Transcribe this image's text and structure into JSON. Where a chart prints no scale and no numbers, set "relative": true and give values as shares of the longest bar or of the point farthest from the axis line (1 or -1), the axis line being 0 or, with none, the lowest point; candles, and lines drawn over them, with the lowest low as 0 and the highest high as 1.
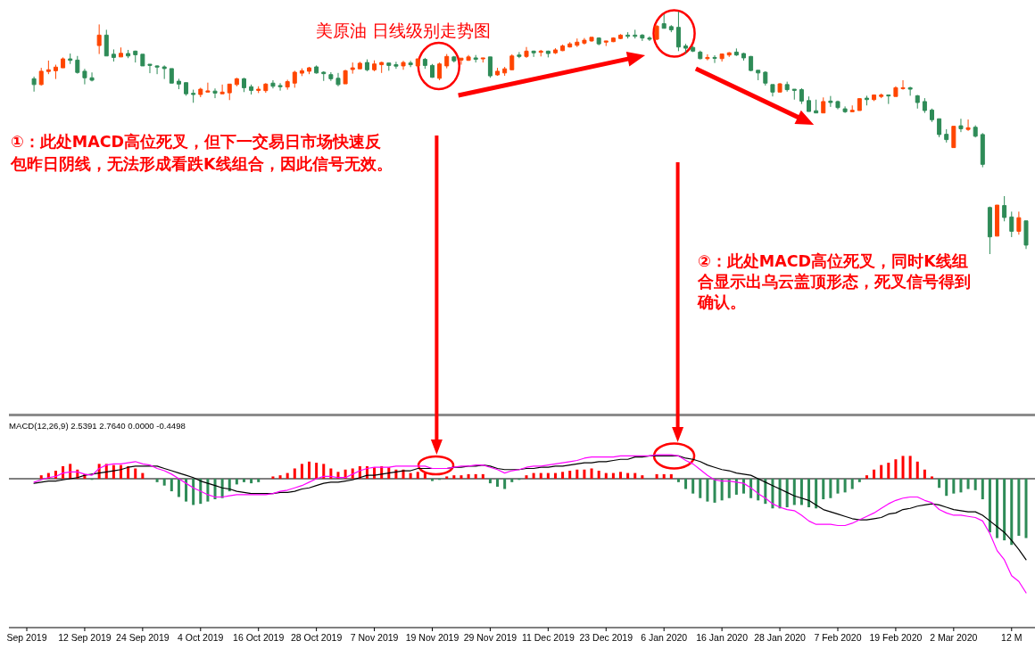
{
  "chart_data": [
    {
      "type": "candlestick",
      "title": "美原油 日线级别走势图",
      "relative": true,
      "tick_labels": false,
      "annotations": [
        "①：此处MACD高位死叉，但下一交易日市场快速反包昨日阴线，无法形成看跌K线组合，因此信号无效。",
        "②：此处MACD高位死叉，同时K线组合显示出乌云盖顶形态，死叉信号得到确认。"
      ],
      "categories": [
        null,
        null,
        null,
        null,
        null,
        null,
        null,
        null,
        null,
        null,
        null,
        null,
        null,
        null,
        null,
        null,
        null,
        null,
        null,
        null,
        null,
        null,
        null,
        null,
        null,
        null,
        null,
        null,
        null,
        null,
        null,
        null,
        null,
        null,
        null,
        null,
        null,
        null,
        null,
        null,
        null,
        null,
        null,
        null,
        null,
        null,
        null,
        null,
        null,
        null,
        null,
        null,
        null,
        null,
        null,
        null,
        null,
        null,
        null,
        null,
        null,
        null,
        null,
        null,
        null,
        null,
        null,
        null,
        null,
        null,
        null,
        null,
        null,
        null,
        null,
        null,
        null,
        null,
        null,
        null,
        null,
        null,
        null,
        null,
        null,
        null,
        null,
        null,
        null,
        null,
        null,
        null,
        null,
        null,
        null,
        null,
        null,
        null,
        null,
        null,
        null,
        null,
        null,
        null,
        null,
        null,
        null,
        null,
        null,
        null,
        null,
        null,
        null,
        null,
        null,
        null,
        null,
        null,
        null,
        null,
        null,
        null,
        null,
        null,
        null,
        null,
        null,
        null,
        null,
        null,
        null,
        null,
        null,
        null,
        null,
        null,
        null,
        null,
        null
      ],
      "ohlc": [
        null,
        [
          0.723,
          0.732,
          0.67,
          0.699
        ],
        [
          0.699,
          0.768,
          0.695,
          0.754
        ],
        [
          0.753,
          0.798,
          0.742,
          0.76
        ],
        [
          0.756,
          0.781,
          0.722,
          0.771
        ],
        [
          0.768,
          0.811,
          0.768,
          0.805
        ],
        [
          0.805,
          0.827,
          0.784,
          0.799
        ],
        [
          0.8,
          0.817,
          0.744,
          0.749
        ],
        [
          0.754,
          0.764,
          0.7,
          0.727
        ],
        [
          0.727,
          0.749,
          0.712,
          0.717
        ],
        [
          0.86,
          0.947,
          0.825,
          0.903
        ],
        [
          0.903,
          0.925,
          0.817,
          0.817
        ],
        [
          0.824,
          0.844,
          0.794,
          0.811
        ],
        [
          0.813,
          0.852,
          0.813,
          0.828
        ],
        [
          0.827,
          0.842,
          0.808,
          0.817
        ],
        [
          0.837,
          0.839,
          0.79,
          0.822
        ],
        [
          0.824,
          0.824,
          0.776,
          0.776
        ],
        [
          0.783,
          0.783,
          0.746,
          0.778
        ],
        [
          0.776,
          0.778,
          0.742,
          0.771
        ],
        [
          0.772,
          0.778,
          0.722,
          0.765
        ],
        [
          0.765,
          0.765,
          0.705,
          0.705
        ],
        [
          0.713,
          0.723,
          0.68,
          0.701
        ],
        [
          0.707,
          0.707,
          0.653,
          0.661
        ],
        [
          0.663,
          0.678,
          0.624,
          0.658
        ],
        [
          0.658,
          0.686,
          0.647,
          0.68
        ],
        [
          0.668,
          0.707,
          0.668,
          0.673
        ],
        [
          0.672,
          0.683,
          0.643,
          0.664
        ],
        [
          0.661,
          0.699,
          0.661,
          0.668
        ],
        [
          0.665,
          0.701,
          0.635,
          0.701
        ],
        [
          0.699,
          0.727,
          0.692,
          0.723
        ],
        [
          0.723,
          0.727,
          0.668,
          0.686
        ],
        [
          0.69,
          0.699,
          0.658,
          0.675
        ],
        [
          0.675,
          0.692,
          0.664,
          0.68
        ],
        [
          0.674,
          0.705,
          0.665,
          0.701
        ],
        [
          0.705,
          0.717,
          0.683,
          0.692
        ],
        [
          0.695,
          0.705,
          0.674,
          0.69
        ],
        [
          0.689,
          0.719,
          0.678,
          0.711
        ],
        [
          0.705,
          0.756,
          0.686,
          0.75
        ],
        [
          0.746,
          0.766,
          0.734,
          0.756
        ],
        [
          0.754,
          0.772,
          0.742,
          0.768
        ],
        [
          0.772,
          0.778,
          0.744,
          0.747
        ],
        [
          0.75,
          0.754,
          0.714,
          0.744
        ],
        [
          0.74,
          0.75,
          0.714,
          0.723
        ],
        [
          0.725,
          0.747,
          0.692,
          0.699
        ],
        [
          0.702,
          0.76,
          0.702,
          0.756
        ],
        [
          0.761,
          0.79,
          0.744,
          0.768
        ],
        [
          0.764,
          0.793,
          0.764,
          0.787
        ],
        [
          0.79,
          0.803,
          0.754,
          0.76
        ],
        [
          0.76,
          0.799,
          0.754,
          0.784
        ],
        [
          0.781,
          0.793,
          0.747,
          0.79
        ],
        [
          0.788,
          0.788,
          0.756,
          0.778
        ],
        [
          0.781,
          0.793,
          0.764,
          0.775
        ],
        [
          0.776,
          0.797,
          0.76,
          0.79
        ],
        [
          0.788,
          0.797,
          0.771,
          0.781
        ],
        [
          0.776,
          0.805,
          0.771,
          0.805
        ],
        [
          0.803,
          0.809,
          0.764,
          0.778
        ],
        [
          0.778,
          0.784,
          0.727,
          0.729
        ],
        [
          0.725,
          0.79,
          0.717,
          0.784
        ],
        [
          0.776,
          0.825,
          0.766,
          0.815
        ],
        [
          0.813,
          0.817,
          0.79,
          0.797
        ],
        [
          0.8,
          0.808,
          0.781,
          0.808
        ],
        [
          0.799,
          0.821,
          0.797,
          0.813
        ],
        [
          0.809,
          0.821,
          0.79,
          0.803
        ],
        [
          0.805,
          0.809,
          0.79,
          0.809
        ],
        [
          0.813,
          0.813,
          0.727,
          0.735
        ],
        [
          0.739,
          0.768,
          0.735,
          0.754
        ],
        [
          0.747,
          0.772,
          0.735,
          0.764
        ],
        [
          0.76,
          0.824,
          0.76,
          0.817
        ],
        [
          0.821,
          0.833,
          0.808,
          0.815
        ],
        [
          0.815,
          0.854,
          0.809,
          0.837
        ],
        [
          0.837,
          0.839,
          0.813,
          0.83
        ],
        [
          0.832,
          0.842,
          0.815,
          0.837
        ],
        [
          0.837,
          0.839,
          0.811,
          0.827
        ],
        [
          0.83,
          0.849,
          0.825,
          0.842
        ],
        [
          0.839,
          0.864,
          0.837,
          0.858
        ],
        [
          0.854,
          0.874,
          0.852,
          0.867
        ],
        [
          0.861,
          0.889,
          0.854,
          0.874
        ],
        [
          0.87,
          0.891,
          0.864,
          0.882
        ],
        [
          0.879,
          0.894,
          0.876,
          0.894
        ],
        [
          0.891,
          0.894,
          0.861,
          0.867
        ],
        [
          0.874,
          0.879,
          0.858,
          0.879
        ],
        [
          0.876,
          0.894,
          0.874,
          0.891
        ],
        [
          0.889,
          0.907,
          0.886,
          0.903
        ],
        [
          0.903,
          0.915,
          0.889,
          0.898
        ],
        [
          0.903,
          0.925,
          0.889,
          0.898
        ],
        [
          0.903,
          0.907,
          0.879,
          0.891
        ],
        [
          0.891,
          0.898,
          0.879,
          0.886
        ],
        [
          0.886,
          0.944,
          0.882,
          0.94
        ],
        [
          0.95,
          0.989,
          0.931,
          0.931
        ],
        [
          0.938,
          0.944,
          0.915,
          0.925
        ],
        [
          0.935,
          1,
          0.837,
          0.854
        ],
        [
          0.858,
          0.867,
          0.827,
          0.849
        ],
        [
          0.852,
          0.858,
          0.833,
          0.837
        ],
        [
          0.833,
          0.839,
          0.803,
          0.806
        ],
        [
          0.806,
          0.824,
          0.799,
          0.811
        ],
        [
          0.811,
          0.82,
          0.788,
          0.808
        ],
        [
          0.806,
          0.827,
          0.794,
          0.825
        ],
        [
          0.821,
          0.833,
          0.813,
          0.83
        ],
        [
          0.833,
          0.848,
          0.817,
          0.821
        ],
        [
          0.827,
          0.83,
          0.798,
          0.809
        ],
        [
          0.815,
          0.817,
          0.754,
          0.757
        ],
        [
          0.758,
          0.758,
          0.717,
          0.747
        ],
        [
          0.75,
          0.754,
          0.695,
          0.705
        ],
        [
          0.699,
          0.699,
          0.65,
          0.668
        ],
        [
          0.668,
          0.705,
          0.668,
          0.702
        ],
        [
          0.699,
          0.711,
          0.67,
          0.678
        ],
        [
          0.68,
          0.68,
          0.637,
          0.675
        ],
        [
          0.678,
          0.684,
          0.619,
          0.631
        ],
        [
          0.633,
          0.65,
          0.588,
          0.588
        ],
        [
          0.591,
          0.637,
          0.582,
          0.582
        ],
        [
          0.582,
          0.646,
          0.582,
          0.629
        ],
        [
          0.631,
          0.652,
          0.607,
          0.625
        ],
        [
          0.629,
          0.633,
          0.597,
          0.604
        ],
        [
          0.599,
          0.609,
          0.582,
          0.587
        ],
        [
          0.587,
          0.613,
          0.587,
          0.593
        ],
        [
          0.592,
          0.643,
          0.592,
          0.641
        ],
        [
          0.643,
          0.653,
          0.613,
          0.637
        ],
        [
          0.637,
          0.658,
          0.631,
          0.656
        ],
        [
          0.65,
          0.662,
          0.643,
          0.656
        ],
        [
          0.656,
          0.658,
          0.619,
          0.652
        ],
        [
          0.65,
          0.692,
          0.65,
          0.686
        ],
        [
          0.683,
          0.717,
          0.678,
          0.686
        ],
        [
          0.686,
          0.69,
          0.653,
          0.68
        ],
        [
          0.653,
          0.656,
          0.6,
          0.625
        ],
        [
          0.629,
          0.643,
          0.582,
          0.592
        ],
        [
          0.594,
          0.6,
          0.545,
          0.554
        ],
        [
          0.558,
          0.558,
          0.482,
          0.493
        ],
        [
          0.494,
          0.515,
          0.46,
          0.472
        ],
        [
          0.439,
          0.527,
          0.439,
          0.527
        ],
        [
          0.529,
          0.558,
          0.503,
          0.517
        ],
        [
          0.514,
          0.555,
          0.508,
          0.521
        ],
        [
          0.523,
          0.531,
          0.481,
          0.486
        ],
        [
          0.493,
          0.499,
          0.358,
          0.37
        ],
        [
          0.192,
          0.196,
          0,
          0.071
        ],
        [
          0.074,
          0.202,
          0.074,
          0.202
        ],
        [
          0.2,
          0.239,
          0.135,
          0.151
        ],
        [
          0.153,
          0.175,
          0.07,
          0.094
        ],
        [
          0.094,
          0.175,
          0.08,
          0.15
        ],
        [
          0.137,
          0.137,
          0.021,
          0.037
        ]
      ],
      "colors": [
        null,
        "#2e8b57",
        "#ff4500",
        "#ff4500",
        "#ff4500",
        "#ff4500",
        "#2e8b57",
        "#2e8b57",
        "#2e8b57",
        "#2e8b57",
        "#ff4500",
        "#2e8b57",
        "#2e8b57",
        "#ff4500",
        "#2e8b57",
        "#2e8b57",
        "#2e8b57",
        "#2e8b57",
        "#2e8b57",
        "#2e8b57",
        "#2e8b57",
        "#2e8b57",
        "#2e8b57",
        "#2e8b57",
        "#ff4500",
        "#ff4500",
        "#2e8b57",
        "#ff4500",
        "#ff4500",
        "#ff4500",
        "#2e8b57",
        "#2e8b57",
        "#ff4500",
        "#ff4500",
        "#2e8b57",
        "#2e8b57",
        "#ff4500",
        "#ff4500",
        "#ff4500",
        "#ff4500",
        "#2e8b57",
        "#2e8b57",
        "#2e8b57",
        "#2e8b57",
        "#ff4500",
        "#ff4500",
        "#ff4500",
        "#2e8b57",
        "#ff4500",
        "#ff4500",
        "#2e8b57",
        "#2e8b57",
        "#ff4500",
        "#2e8b57",
        "#ff4500",
        "#2e8b57",
        "#2e8b57",
        "#ff4500",
        "#ff4500",
        "#2e8b57",
        "#ff4500",
        "#ff4500",
        "#2e8b57",
        "#ff4500",
        "#2e8b57",
        "#ff4500",
        "#ff4500",
        "#ff4500",
        "#2e8b57",
        "#ff4500",
        "#2e8b57",
        "#ff4500",
        "#2e8b57",
        "#ff4500",
        "#ff4500",
        "#ff4500",
        "#ff4500",
        "#ff4500",
        "#ff4500",
        "#2e8b57",
        "#ff4500",
        "#ff4500",
        "#ff4500",
        "#2e8b57",
        "#2e8b57",
        "#2e8b57",
        "#2e8b57",
        "#ff4500",
        "#2e8b57",
        "#2e8b57",
        "#2e8b57",
        "#2e8b57",
        "#2e8b57",
        "#2e8b57",
        "#ff4500",
        "#2e8b57",
        "#ff4500",
        "#ff4500",
        "#2e8b57",
        "#2e8b57",
        "#2e8b57",
        "#2e8b57",
        "#2e8b57",
        "#2e8b57",
        "#ff4500",
        "#2e8b57",
        "#2e8b57",
        "#2e8b57",
        "#2e8b57",
        "#2e8b57",
        "#ff4500",
        "#2e8b57",
        "#2e8b57",
        "#2e8b57",
        "#ff4500",
        "#ff4500",
        "#2e8b57",
        "#ff4500",
        "#ff4500",
        "#2e8b57",
        "#ff4500",
        "#ff4500",
        "#2e8b57",
        "#2e8b57",
        "#2e8b57",
        "#2e8b57",
        "#2e8b57",
        "#2e8b57",
        "#ff4500",
        "#2e8b57",
        "#ff4500",
        "#2e8b57",
        "#2e8b57",
        "#2e8b57",
        "#ff4500",
        "#2e8b57",
        "#2e8b57",
        "#ff4500",
        "#2e8b57"
      ]
    },
    {
      "type": "bar",
      "title": "MACD(12,26,9) 2.5391 2.7640 0.0000 -0.4498",
      "relative": true,
      "categories": [
        "Sep 2019",
        null,
        null,
        null,
        null,
        null,
        null,
        null,
        "12 Sep 2019",
        null,
        null,
        null,
        null,
        null,
        null,
        null,
        "24 Sep 2019",
        null,
        null,
        null,
        null,
        null,
        null,
        null,
        "4 Oct 2019",
        null,
        null,
        null,
        null,
        null,
        null,
        null,
        "16 Oct 2019",
        null,
        null,
        null,
        null,
        null,
        null,
        null,
        "28 Oct 2019",
        null,
        null,
        null,
        null,
        null,
        null,
        null,
        "7 Nov 2019",
        null,
        null,
        null,
        null,
        null,
        null,
        null,
        "19 Nov 2019",
        null,
        null,
        null,
        null,
        null,
        null,
        null,
        "29 Nov 2019",
        null,
        null,
        null,
        null,
        null,
        null,
        null,
        "11 Dec 2019",
        null,
        null,
        null,
        null,
        null,
        null,
        null,
        "23 Dec 2019",
        null,
        null,
        null,
        null,
        null,
        null,
        null,
        "6 Jan 2020",
        null,
        null,
        null,
        null,
        null,
        null,
        null,
        "16 Jan 2020",
        null,
        null,
        null,
        null,
        null,
        null,
        null,
        "28 Jan 2020",
        null,
        null,
        null,
        null,
        null,
        null,
        null,
        "7 Feb 2020",
        null,
        null,
        null,
        null,
        null,
        null,
        null,
        "19 Feb 2020",
        null,
        null,
        null,
        null,
        null,
        null,
        null,
        "2 Mar 2020",
        null,
        null,
        null,
        null,
        null,
        null,
        null,
        "12 M",
        null,
        null
      ],
      "series": [
        {
          "type": "bar",
          "values": [
            null,
            null,
            0.03,
            0.05,
            0.07,
            0.11,
            0.13,
            0.08,
            0.04,
            -0.01,
            0.13,
            0.13,
            0.12,
            0.12,
            0.11,
            0.09,
            0.05,
            null,
            -0.03,
            -0.06,
            -0.11,
            -0.16,
            -0.2,
            -0.23,
            -0.22,
            -0.2,
            -0.18,
            -0.17,
            -0.11,
            -0.05,
            -0.03,
            -0.04,
            -0.03,
            null,
            0.02,
            0.03,
            0.05,
            0.09,
            0.13,
            0.15,
            0.14,
            0.13,
            0.09,
            0.06,
            0.08,
            0.09,
            0.11,
            0.11,
            0.1,
            0.11,
            0.1,
            0.08,
            0.08,
            0.05,
            0.06,
            0.05,
            -0.02,
            -0.01,
            0.02,
            0.03,
            0.03,
            0.04,
            0.04,
            0.04,
            -0.04,
            -0.07,
            -0.09,
            -0.03,
            -0.01,
            0.03,
            0.05,
            0.05,
            0.05,
            0.05,
            0.06,
            0.07,
            0.08,
            0.08,
            0.09,
            0.07,
            0.05,
            0.05,
            0.06,
            0.05,
            0.05,
            0.03,
            null,
            0.04,
            0.04,
            0.04,
            -0.03,
            -0.09,
            -0.13,
            -0.17,
            -0.2,
            -0.21,
            -0.19,
            -0.17,
            -0.14,
            -0.13,
            -0.17,
            -0.19,
            -0.22,
            -0.26,
            -0.26,
            -0.25,
            -0.23,
            -0.23,
            -0.25,
            -0.26,
            -0.18,
            -0.17,
            -0.13,
            -0.12,
            -0.09,
            -0.03,
            0.03,
            0.08,
            0.12,
            0.14,
            0.17,
            0.2,
            0.2,
            0.15,
            0.08,
            0.02,
            -0.08,
            -0.15,
            -0.13,
            -0.12,
            -0.09,
            -0.1,
            -0.18,
            -0.47,
            -0.52,
            -0.54,
            -0.58,
            -0.5,
            -0.52
          ],
          "colors": [
            null,
            null,
            "#ff0000",
            "#ff0000",
            "#ff0000",
            "#ff0000",
            "#ff0000",
            "#ff0000",
            "#ff0000",
            "#2e8b57",
            "#ff0000",
            "#ff0000",
            "#ff0000",
            "#ff0000",
            "#ff0000",
            "#ff0000",
            "#ff0000",
            null,
            "#2e8b57",
            "#2e8b57",
            "#2e8b57",
            "#2e8b57",
            "#2e8b57",
            "#2e8b57",
            "#2e8b57",
            "#2e8b57",
            "#2e8b57",
            "#2e8b57",
            "#2e8b57",
            "#2e8b57",
            "#2e8b57",
            "#2e8b57",
            "#2e8b57",
            null,
            "#ff0000",
            "#ff0000",
            "#ff0000",
            "#ff0000",
            "#ff0000",
            "#ff0000",
            "#ff0000",
            "#ff0000",
            "#ff0000",
            "#ff0000",
            "#ff0000",
            "#ff0000",
            "#ff0000",
            "#ff0000",
            "#ff0000",
            "#ff0000",
            "#ff0000",
            "#ff0000",
            "#ff0000",
            "#ff0000",
            "#ff0000",
            "#ff0000",
            "#2e8b57",
            "#2e8b57",
            "#ff0000",
            "#ff0000",
            "#ff0000",
            "#ff0000",
            "#ff0000",
            "#ff0000",
            "#2e8b57",
            "#2e8b57",
            "#2e8b57",
            "#2e8b57",
            "#2e8b57",
            "#ff0000",
            "#ff0000",
            "#ff0000",
            "#ff0000",
            "#ff0000",
            "#ff0000",
            "#ff0000",
            "#ff0000",
            "#ff0000",
            "#ff0000",
            "#ff0000",
            "#ff0000",
            "#ff0000",
            "#ff0000",
            "#ff0000",
            "#ff0000",
            "#ff0000",
            null,
            "#ff0000",
            "#ff0000",
            "#ff0000",
            "#2e8b57",
            "#2e8b57",
            "#2e8b57",
            "#2e8b57",
            "#2e8b57",
            "#2e8b57",
            "#2e8b57",
            "#2e8b57",
            "#2e8b57",
            "#2e8b57",
            "#2e8b57",
            "#2e8b57",
            "#2e8b57",
            "#2e8b57",
            "#2e8b57",
            "#2e8b57",
            "#2e8b57",
            "#2e8b57",
            "#2e8b57",
            "#2e8b57",
            "#2e8b57",
            "#2e8b57",
            "#2e8b57",
            "#2e8b57",
            "#2e8b57",
            "#2e8b57",
            "#ff0000",
            "#ff0000",
            "#ff0000",
            "#ff0000",
            "#ff0000",
            "#ff0000",
            "#ff0000",
            "#ff0000",
            "#ff0000",
            "#ff0000",
            "#2e8b57",
            "#2e8b57",
            "#2e8b57",
            "#2e8b57",
            "#2e8b57",
            "#2e8b57",
            "#2e8b57",
            "#2e8b57",
            "#2e8b57",
            "#2e8b57",
            "#2e8b57",
            "#2e8b57",
            "#2e8b57"
          ]
        },
        {
          "type": "line",
          "color": "#000000",
          "values": [
            null,
            -0.04,
            -0.03,
            -0.02,
            -0.02,
            -0.01,
            0,
            0.01,
            0.03,
            0.04,
            0.05,
            0.06,
            0.07,
            0.08,
            0.1,
            0.11,
            0.11,
            0.11,
            0.11,
            0.09,
            0.07,
            0.05,
            0.03,
            0.01,
            -0.02,
            -0.04,
            -0.06,
            -0.08,
            -0.09,
            -0.11,
            -0.12,
            -0.13,
            -0.13,
            -0.13,
            -0.13,
            -0.12,
            -0.12,
            -0.11,
            -0.09,
            -0.08,
            -0.06,
            -0.04,
            -0.03,
            -0.03,
            -0.02,
            -0.01,
            0.01,
            0.03,
            0.03,
            0.04,
            0.05,
            0.06,
            0.07,
            0.07,
            0.09,
            0.09,
            0.09,
            0.09,
            0.09,
            0.1,
            0.1,
            0.11,
            0.11,
            0.12,
            0.11,
            0.09,
            0.08,
            0.08,
            0.08,
            0.09,
            0.09,
            0.1,
            0.1,
            0.11,
            0.11,
            0.12,
            0.13,
            0.14,
            0.14,
            0.15,
            0.15,
            0.16,
            0.17,
            0.17,
            0.19,
            0.19,
            0.2,
            0.2,
            0.2,
            0.2,
            0.2,
            0.18,
            0.17,
            0.15,
            0.12,
            0.1,
            0.08,
            0.07,
            0.05,
            0.04,
            0.03,
            0,
            -0.03,
            -0.06,
            -0.09,
            -0.12,
            -0.15,
            -0.17,
            -0.19,
            -0.23,
            -0.27,
            -0.29,
            -0.31,
            -0.33,
            -0.35,
            -0.36,
            -0.36,
            -0.35,
            -0.34,
            -0.31,
            -0.3,
            -0.27,
            -0.26,
            -0.24,
            -0.23,
            -0.22,
            -0.23,
            -0.25,
            -0.27,
            -0.28,
            -0.29,
            -0.29,
            -0.32,
            -0.37,
            -0.42,
            -0.47,
            -0.54,
            -0.62,
            -0.71
          ]
        },
        {
          "type": "line",
          "color": "#ff00ff",
          "values": [
            null,
            -0.03,
            -0.01,
            0.01,
            0.02,
            0.05,
            0.06,
            0.06,
            0.04,
            0.03,
            0.09,
            0.12,
            0.13,
            0.13,
            0.14,
            0.15,
            0.13,
            0.12,
            0.09,
            0.07,
            0.04,
            0,
            -0.04,
            -0.08,
            -0.11,
            -0.14,
            -0.16,
            -0.16,
            -0.15,
            -0.14,
            -0.14,
            -0.14,
            -0.14,
            -0.14,
            -0.13,
            -0.11,
            -0.1,
            -0.08,
            -0.06,
            -0.03,
            0,
            0.02,
            0.02,
            0.01,
            0.01,
            0.04,
            0.07,
            0.09,
            0.1,
            0.1,
            0.1,
            0.11,
            0.11,
            0.11,
            0.11,
            0.11,
            0.09,
            0.09,
            0.09,
            0.1,
            0.11,
            0.11,
            0.12,
            0.12,
            0.1,
            0.08,
            0.05,
            0.07,
            0.08,
            0.1,
            0.11,
            0.11,
            0.12,
            0.13,
            0.14,
            0.15,
            0.16,
            0.18,
            0.19,
            0.19,
            0.19,
            0.19,
            0.2,
            0.2,
            0.2,
            0.2,
            0.2,
            0.21,
            0.21,
            0.21,
            0.2,
            0.16,
            0.13,
            0.08,
            0.03,
            -0.01,
            -0.02,
            -0.02,
            -0.03,
            -0.04,
            -0.08,
            -0.13,
            -0.17,
            -0.22,
            -0.25,
            -0.27,
            -0.28,
            -0.32,
            -0.37,
            -0.4,
            -0.4,
            -0.4,
            -0.41,
            -0.41,
            -0.39,
            -0.36,
            -0.33,
            -0.3,
            -0.26,
            -0.22,
            -0.19,
            -0.17,
            -0.16,
            -0.16,
            -0.19,
            -0.21,
            -0.27,
            -0.3,
            -0.32,
            -0.32,
            -0.33,
            -0.34,
            -0.37,
            -0.48,
            -0.63,
            -0.71,
            -0.85,
            -0.9,
            -1
          ]
        }
      ]
    }
  ]
}
